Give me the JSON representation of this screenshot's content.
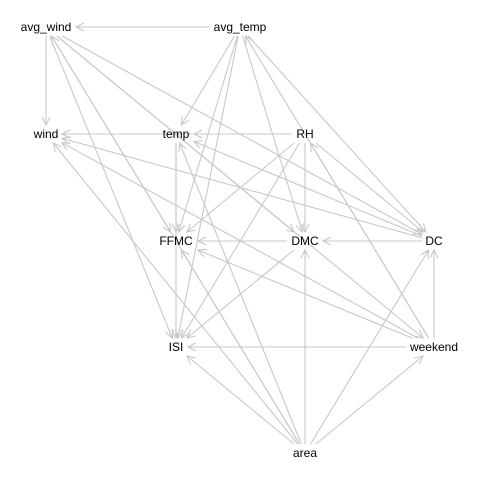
{
  "graph": {
    "nodes": [
      {
        "id": "avg_wind",
        "label": "avg_wind"
      },
      {
        "id": "avg_temp",
        "label": "avg_temp"
      },
      {
        "id": "wind",
        "label": "wind"
      },
      {
        "id": "temp",
        "label": "temp"
      },
      {
        "id": "RH",
        "label": "RH"
      },
      {
        "id": "FFMC",
        "label": "FFMC"
      },
      {
        "id": "DMC",
        "label": "DMC"
      },
      {
        "id": "DC",
        "label": "DC"
      },
      {
        "id": "ISI",
        "label": "ISI"
      },
      {
        "id": "weekend",
        "label": "weekend"
      },
      {
        "id": "area",
        "label": "area"
      }
    ],
    "edges": [
      {
        "from": "avg_temp",
        "to": "avg_wind"
      },
      {
        "from": "avg_temp",
        "to": "temp"
      },
      {
        "from": "avg_temp",
        "to": "FFMC"
      },
      {
        "from": "avg_temp",
        "to": "DMC"
      },
      {
        "from": "avg_temp",
        "to": "DC"
      },
      {
        "from": "avg_temp",
        "to": "ISI"
      },
      {
        "from": "avg_wind",
        "to": "wind"
      },
      {
        "from": "avg_wind",
        "to": "FFMC"
      },
      {
        "from": "avg_wind",
        "to": "ISI"
      },
      {
        "from": "avg_wind",
        "to": "DMC"
      },
      {
        "from": "avg_wind",
        "to": "DC"
      },
      {
        "from": "avg_wind",
        "to": "weekend"
      },
      {
        "from": "RH",
        "to": "wind"
      },
      {
        "from": "RH",
        "to": "temp"
      },
      {
        "from": "RH",
        "to": "FFMC"
      },
      {
        "from": "RH",
        "to": "DMC"
      },
      {
        "from": "RH",
        "to": "ISI"
      },
      {
        "from": "RH",
        "to": "DC"
      },
      {
        "from": "temp",
        "to": "FFMC"
      },
      {
        "from": "temp",
        "to": "ISI"
      },
      {
        "from": "DC",
        "to": "temp"
      },
      {
        "from": "DC",
        "to": "wind"
      },
      {
        "from": "DC",
        "to": "DMC"
      },
      {
        "from": "DMC",
        "to": "FFMC"
      },
      {
        "from": "DMC",
        "to": "ISI"
      },
      {
        "from": "weekend",
        "to": "wind"
      },
      {
        "from": "weekend",
        "to": "FFMC"
      },
      {
        "from": "weekend",
        "to": "ISI"
      },
      {
        "from": "weekend",
        "to": "DC"
      },
      {
        "from": "weekend",
        "to": "RH"
      },
      {
        "from": "weekend",
        "to": "avg_temp"
      },
      {
        "from": "area",
        "to": "ISI"
      },
      {
        "from": "area",
        "to": "DMC"
      },
      {
        "from": "area",
        "to": "DC"
      },
      {
        "from": "area",
        "to": "weekend"
      },
      {
        "from": "area",
        "to": "FFMC"
      },
      {
        "from": "area",
        "to": "temp"
      },
      {
        "from": "area",
        "to": "wind"
      },
      {
        "from": "area",
        "to": "avg_wind"
      }
    ],
    "edge_color": "#c8c8c8",
    "node_text_color": "#000000"
  }
}
